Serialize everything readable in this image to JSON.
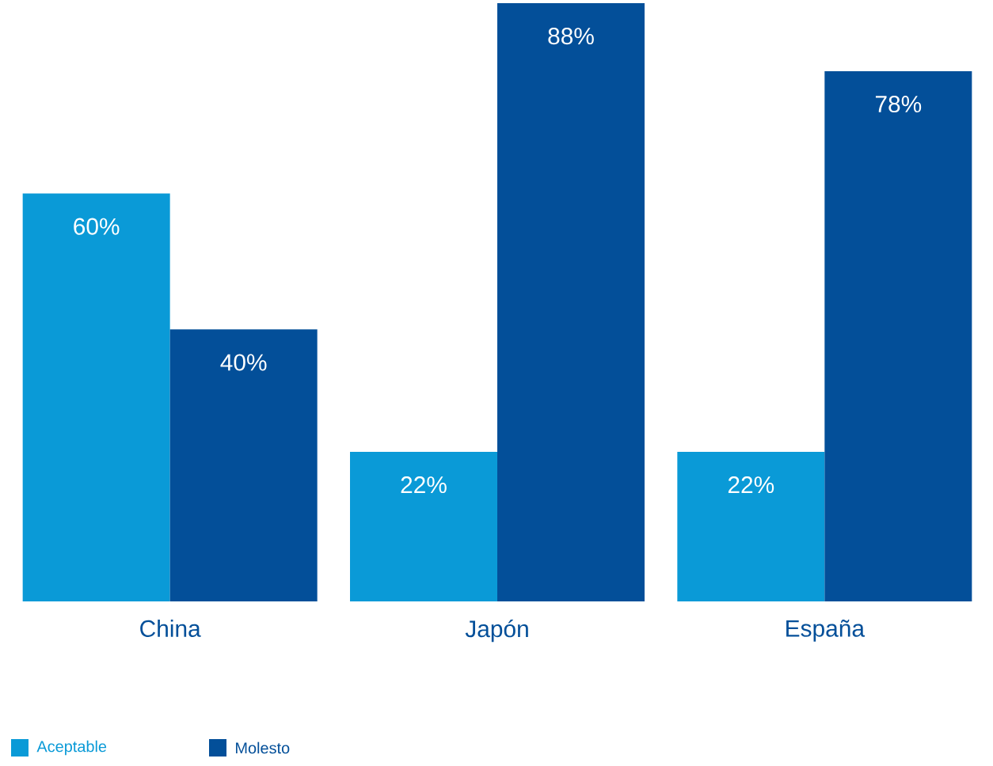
{
  "chart_data": {
    "type": "bar",
    "categories": [
      "China",
      "Japón",
      "España"
    ],
    "series": [
      {
        "name": "Aceptable",
        "color": "#0a9ad7",
        "values": [
          60,
          22,
          22
        ],
        "value_labels": [
          "60%",
          "22%",
          "22%"
        ]
      },
      {
        "name": "Molesto",
        "color": "#034f99",
        "values": [
          40,
          88,
          78
        ],
        "value_labels": [
          "40%",
          "88%",
          "78%"
        ]
      }
    ],
    "legend": "bottom left"
  }
}
